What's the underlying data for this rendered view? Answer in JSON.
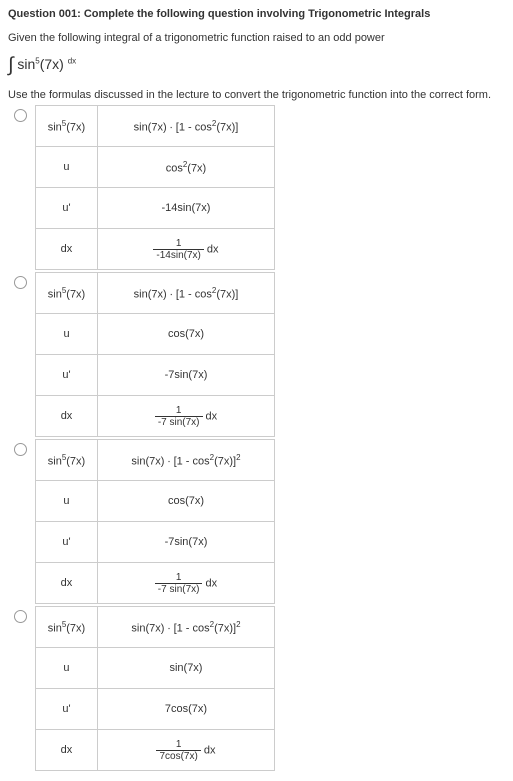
{
  "header": {
    "question_number": "Question 001:",
    "title": "Complete the following question involving Trigonometric Integrals"
  },
  "instruction": "Given the following integral of a trigonometric function raised to an odd power",
  "integral_expression": "sin⁵(7x) dx",
  "formula_note": "Use the formulas discussed in the lecture to convert the trigonometric function into the correct form.",
  "options": [
    {
      "rows": [
        {
          "label": "sin⁵(7x)",
          "value": "sin(7x) ∙ [1 - cos²(7x)]"
        },
        {
          "label": "u",
          "value": "cos²(7x)"
        },
        {
          "label": "u'",
          "value": "-14sin(7x)"
        },
        {
          "label": "dx",
          "frac": {
            "num": "1",
            "den": "-14sin(7x)"
          },
          "suffix": " dx"
        }
      ]
    },
    {
      "rows": [
        {
          "label": "sin⁵(7x)",
          "value": "sin(7x) ∙ [1 - cos²(7x)]"
        },
        {
          "label": "u",
          "value": "cos(7x)"
        },
        {
          "label": "u'",
          "value": "-7sin(7x)"
        },
        {
          "label": "dx",
          "frac": {
            "num": "1",
            "den": "-7 sin(7x)"
          },
          "suffix": " dx"
        }
      ]
    },
    {
      "rows": [
        {
          "label": "sin⁵(7x)",
          "value": "sin(7x) ∙ [1 - cos²(7x)]²"
        },
        {
          "label": "u",
          "value": "cos(7x)"
        },
        {
          "label": "u'",
          "value": "-7sin(7x)"
        },
        {
          "label": "dx",
          "frac": {
            "num": "1",
            "den": "-7 sin(7x)"
          },
          "suffix": " dx"
        }
      ]
    },
    {
      "rows": [
        {
          "label": "sin⁵(7x)",
          "value": "sin(7x) ∙ [1 - cos²(7x)]²"
        },
        {
          "label": "u",
          "value": "sin(7x)"
        },
        {
          "label": "u'",
          "value": "7cos(7x)"
        },
        {
          "label": "dx",
          "frac": {
            "num": "1",
            "den": "7cos(7x)"
          },
          "suffix": " dx"
        }
      ]
    }
  ],
  "colors": {
    "text": "#333333",
    "border": "#cccccc",
    "radio_border": "#999999"
  }
}
